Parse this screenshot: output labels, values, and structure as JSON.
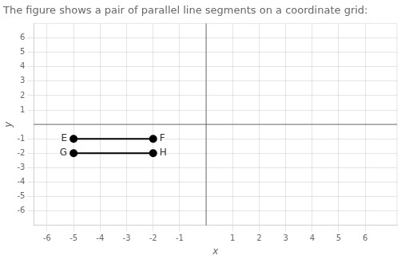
{
  "chart_data": {
    "type": "line",
    "title": "The figure shows a pair of parallel line segments on a coordinate grid:",
    "xlabel": "x",
    "ylabel": "y",
    "series": [
      {
        "x": [
          -5,
          -2
        ],
        "values": [
          -1,
          -1
        ],
        "color": "#000000",
        "marker": "circle"
      },
      {
        "x": [
          -5,
          -2
        ],
        "values": [
          -2,
          -2
        ],
        "color": "#000000",
        "marker": "circle"
      }
    ],
    "annotations": [
      {
        "text": "E",
        "x": -5,
        "y": -1
      },
      {
        "text": "F",
        "x": -2,
        "y": -1
      },
      {
        "text": "G",
        "x": -5,
        "y": -2
      },
      {
        "text": "H",
        "x": -2,
        "y": -2
      }
    ],
    "xlim": [
      -6.5,
      7.2
    ],
    "ylim": [
      -7.0,
      7.0
    ],
    "xticks": [
      -6,
      -5,
      -4,
      -3,
      -2,
      -1,
      1,
      2,
      3,
      4,
      5,
      6
    ],
    "yticks": [
      -6,
      -5,
      -4,
      -3,
      -2,
      -1,
      1,
      2,
      3,
      4,
      5,
      6
    ],
    "grid": true
  }
}
